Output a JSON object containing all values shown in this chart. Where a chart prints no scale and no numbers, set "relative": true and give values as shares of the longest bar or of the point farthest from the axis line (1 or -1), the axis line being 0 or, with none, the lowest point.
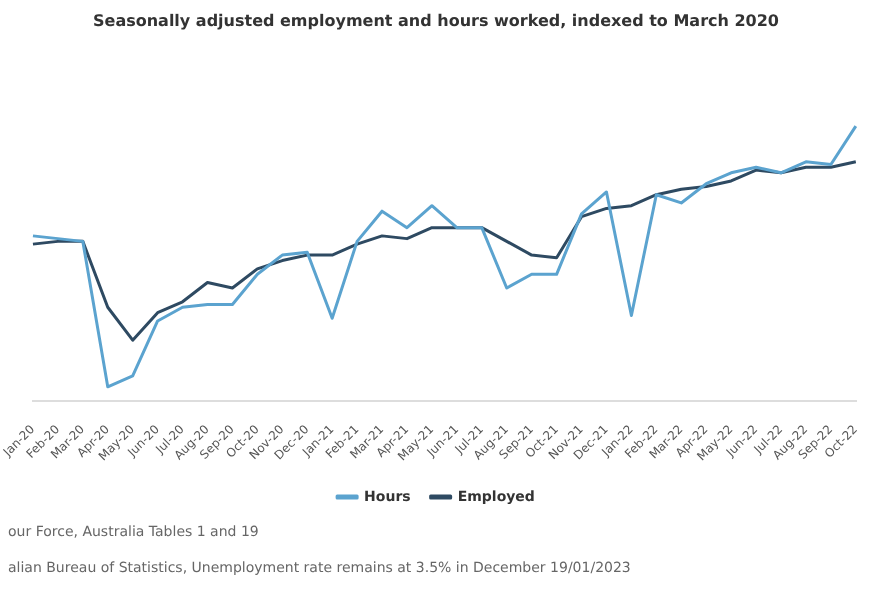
{
  "chart_data": {
    "type": "line",
    "title": "Seasonally adjusted employment and hours worked, indexed to March 2020",
    "relative": true,
    "legend": "bottom",
    "marker": "none",
    "line_style": "solid",
    "categories": [
      "Jan-20",
      "Feb-20",
      "Mar-20",
      "Apr-20",
      "May-20",
      "Jun-20",
      "Jul-20",
      "Aug-20",
      "Sep-20",
      "Oct-20",
      "Nov-20",
      "Dec-20",
      "Jan-21",
      "Feb-21",
      "Mar-21",
      "Apr-21",
      "May-21",
      "Jun-21",
      "Jul-21",
      "Aug-21",
      "Sep-21",
      "Oct-21",
      "Nov-21",
      "Dec-21",
      "Jan-22",
      "Feb-22",
      "Mar-22",
      "Apr-22",
      "May-22",
      "Jun-22",
      "Jul-22",
      "Aug-22",
      "Sep-22",
      "Oct-22"
    ],
    "series": [
      {
        "name": "Hours",
        "color": "#5ba3cf",
        "values": [
          0.6,
          0.59,
          0.58,
          0.05,
          0.09,
          0.29,
          0.34,
          0.35,
          0.35,
          0.46,
          0.53,
          0.54,
          0.3,
          0.58,
          0.69,
          0.63,
          0.71,
          0.63,
          0.63,
          0.41,
          0.46,
          0.46,
          0.68,
          0.76,
          0.31,
          0.75,
          0.72,
          0.79,
          0.83,
          0.85,
          0.83,
          0.87,
          0.86,
          1
        ]
      },
      {
        "name": "Employed",
        "color": "#2e4a62",
        "values": [
          0.57,
          0.58,
          0.58,
          0.34,
          0.22,
          0.32,
          0.36,
          0.43,
          0.41,
          0.48,
          0.51,
          0.53,
          0.53,
          0.57,
          0.6,
          0.59,
          0.63,
          0.63,
          0.63,
          0.58,
          0.53,
          0.52,
          0.67,
          0.7,
          0.71,
          0.75,
          0.77,
          0.78,
          0.8,
          0.84,
          0.83,
          0.85,
          0.85,
          0.87
        ]
      }
    ],
    "annotations": [
      "our Force, Australia Tables 1 and 19",
      "alian Bureau of Statistics, Unemployment rate remains at 3.5% in December 19/01/2023"
    ]
  }
}
